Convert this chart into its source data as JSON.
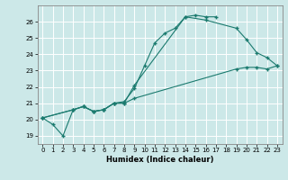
{
  "title": "",
  "xlabel": "Humidex (Indice chaleur)",
  "ylabel": "",
  "bg_color": "#cce8e8",
  "line_color": "#1a7a6e",
  "grid_color": "#ffffff",
  "xlim": [
    -0.5,
    23.5
  ],
  "ylim": [
    18.5,
    27.0
  ],
  "xticks": [
    0,
    1,
    2,
    3,
    4,
    5,
    6,
    7,
    8,
    9,
    10,
    11,
    12,
    13,
    14,
    15,
    16,
    17,
    18,
    19,
    20,
    21,
    22,
    23
  ],
  "yticks": [
    19,
    20,
    21,
    22,
    23,
    24,
    25,
    26
  ],
  "line1_x": [
    0,
    1,
    2,
    3,
    4,
    5,
    6,
    7,
    8,
    9,
    10,
    11,
    12,
    13,
    14,
    15,
    16,
    17
  ],
  "line1_y": [
    20.1,
    19.7,
    19.0,
    20.6,
    20.8,
    20.5,
    20.6,
    21.0,
    21.1,
    21.9,
    23.3,
    24.7,
    25.3,
    25.6,
    26.3,
    26.4,
    26.3,
    26.3
  ],
  "line2_x": [
    0,
    3,
    4,
    5,
    6,
    7,
    8,
    9,
    14,
    16,
    19,
    20,
    21,
    22,
    23
  ],
  "line2_y": [
    20.1,
    20.6,
    20.8,
    20.5,
    20.6,
    21.0,
    21.0,
    22.1,
    26.3,
    26.1,
    25.6,
    24.9,
    24.1,
    23.8,
    23.3
  ],
  "line3_x": [
    0,
    3,
    4,
    5,
    6,
    7,
    8,
    9,
    19,
    20,
    21,
    22,
    23
  ],
  "line3_y": [
    20.1,
    20.6,
    20.8,
    20.5,
    20.6,
    21.0,
    21.0,
    21.3,
    23.1,
    23.2,
    23.2,
    23.1,
    23.3
  ]
}
